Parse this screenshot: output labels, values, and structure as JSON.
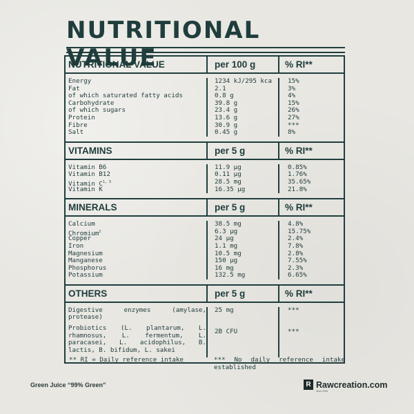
{
  "title": "NUTRITIONAL VALUE",
  "sections": {
    "nutritional": {
      "header": [
        "NUTRITIONAL VALUE",
        "per 100 g",
        "% RI**"
      ],
      "rows": [
        [
          "Energy",
          "1234 kJ/295 kca",
          "15%"
        ],
        [
          "Fat",
          "2.1",
          "3%"
        ],
        [
          "of which saturated fatty acids",
          "0.8 g",
          "4%"
        ],
        [
          "Carbohydrate",
          "39.8 g",
          "15%"
        ],
        [
          "of which sugars",
          "23.4 g",
          "26%"
        ],
        [
          "Protein",
          "13.6 g",
          "27%"
        ],
        [
          "Fibre",
          "30.9 g",
          "***"
        ],
        [
          "Salt",
          "0.45 g",
          "8%"
        ]
      ]
    },
    "vitamins": {
      "header": [
        "VITAMINS",
        "per 5 g",
        "% RI**"
      ],
      "rows": [
        [
          "Vitamin B6",
          "11.9 µg",
          "0.85%"
        ],
        [
          "Vitamin B12",
          "0.11 µg",
          "1.76%"
        ],
        [
          "Vitamin C",
          "28.5 mg",
          "35.65%"
        ],
        [
          "Vitamin K",
          "16.35 µg",
          "21.8%"
        ]
      ],
      "vitc_sup": "1, 3"
    },
    "minerals": {
      "header": [
        "MINERALS",
        "per 5 g",
        "% RI**"
      ],
      "rows": [
        [
          "Calcium",
          "38.5 mg",
          "4.8%"
        ],
        [
          "Chromium",
          "6.3 µg",
          "15.75%"
        ],
        [
          "Copper",
          "24 µg",
          "2.4%"
        ],
        [
          "Iron",
          "1.1 mg",
          "7.8%"
        ],
        [
          "Magnesium",
          "10.5 mg",
          "2.8%"
        ],
        [
          "Manganese",
          "150 µg",
          "7.55%"
        ],
        [
          "Phosphorus",
          "16 mg",
          "2.3%"
        ],
        [
          "Potassium",
          "132.5 mg",
          "6.65%"
        ]
      ],
      "chromium_sup": "2"
    },
    "others": {
      "header": [
        "OTHERS",
        "per 5 g",
        "% RI**"
      ],
      "rows": [
        [
          "Digestive enzymes (amylase, protease)",
          "25 mg",
          "***"
        ],
        [
          "Probiotics (L. plantarum, L. rhamnosus, L. fermentum, L. paracasei, L. acidophilus, B. lactis, B. bifidum, L. sakei",
          "2B CFU",
          "***"
        ]
      ]
    }
  },
  "footnotes": {
    "left": "** RI = Daily reference intake",
    "right": "*** No daily reference intake established"
  },
  "product_name": "Green Juice “99% Green”",
  "brand": {
    "logo_letter": "R",
    "name": "Rawcreation.com",
    "since": "since 2006"
  }
}
